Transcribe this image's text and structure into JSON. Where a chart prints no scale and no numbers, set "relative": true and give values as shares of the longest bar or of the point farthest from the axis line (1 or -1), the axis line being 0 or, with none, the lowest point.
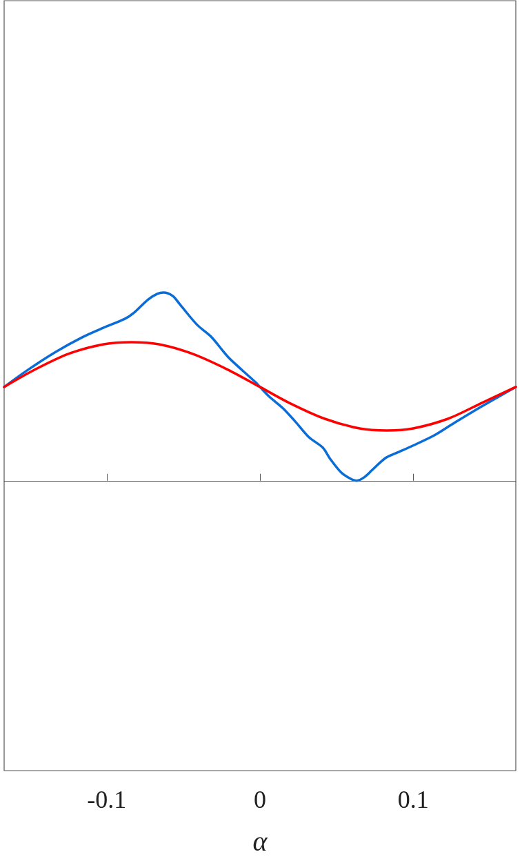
{
  "chart_data": {
    "type": "line",
    "xlabel": "α",
    "relative": true,
    "grid": false,
    "xlim": [
      -0.167,
      0.167
    ],
    "xticks": [
      -0.1,
      0,
      0.1
    ],
    "series": [
      {
        "color": "#0a6cd6",
        "x": [
          -0.167,
          -0.152,
          -0.134,
          -0.116,
          -0.102,
          -0.088,
          -0.082,
          -0.073,
          -0.067,
          -0.063,
          -0.057,
          -0.052,
          -0.041,
          -0.032,
          -0.021,
          -0.012,
          -0.003,
          0,
          0.006,
          0.015,
          0.023,
          0.032,
          0.041,
          0.046,
          0.053,
          0.059,
          0.063,
          0.068,
          0.073,
          0.082,
          0.089,
          0.1,
          0.114,
          0.127,
          0.145,
          0.167
        ],
        "values": [
          0.498,
          0.586,
          0.681,
          0.762,
          0.813,
          0.861,
          0.894,
          0.963,
          0.993,
          1,
          0.982,
          0.934,
          0.828,
          0.766,
          0.659,
          0.59,
          0.524,
          0.498,
          0.447,
          0.385,
          0.315,
          0.231,
          0.176,
          0.114,
          0.044,
          0.011,
          0,
          0.018,
          0.055,
          0.121,
          0.147,
          0.187,
          0.242,
          0.308,
          0.396,
          0.498
        ]
      },
      {
        "color": "#ff0000",
        "x": [
          -0.167,
          -0.147,
          -0.125,
          -0.102,
          -0.084,
          -0.066,
          -0.044,
          -0.021,
          0,
          0.019,
          0.042,
          0.065,
          0.083,
          0.1,
          0.123,
          0.145,
          0.167
        ],
        "values": [
          0.498,
          0.59,
          0.674,
          0.725,
          0.736,
          0.725,
          0.674,
          0.59,
          0.498,
          0.414,
          0.33,
          0.278,
          0.267,
          0.278,
          0.33,
          0.414,
          0.498
        ]
      }
    ]
  }
}
